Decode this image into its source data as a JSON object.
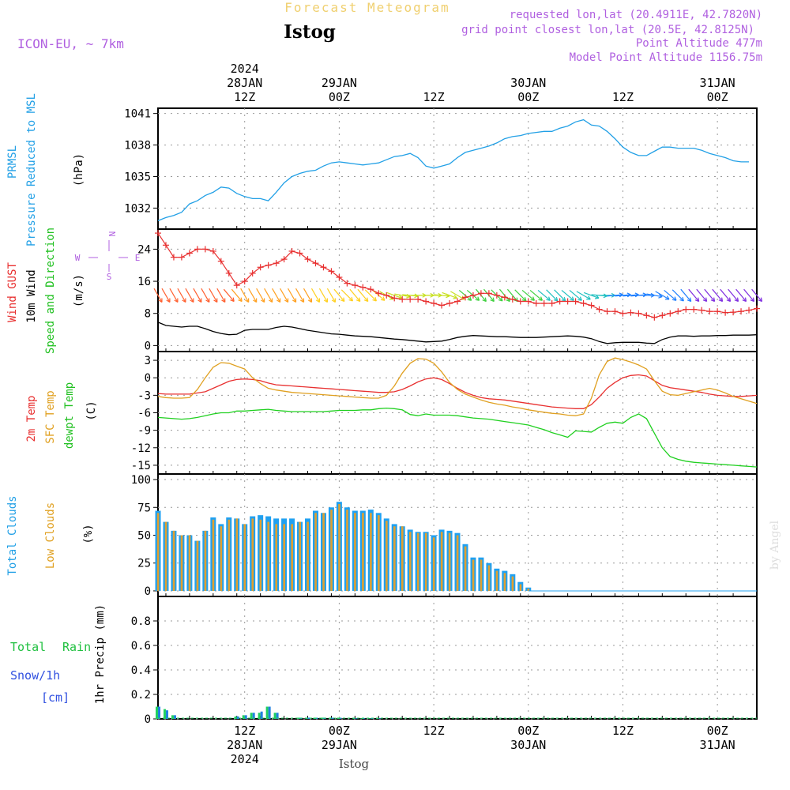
{
  "header": {
    "top_title": "Forecast Meteogram",
    "location": "Istog",
    "model": "ICON-EU, ~ 7km",
    "requested": "requested lon,lat (20.4911E, 42.7820N)",
    "gridpoint": "grid point closest lon,lat (20.5E, 42.8125N)",
    "point_alt": "Point Altitude 477m",
    "model_alt": "Model Point Altitude 1156.75m",
    "footer_location": "Istog",
    "watermark": "by Angel"
  },
  "time_axis": {
    "top_labels": [
      {
        "t": 12,
        "lines": [
          "2024",
          "28JAN",
          "12Z"
        ]
      },
      {
        "t": 24,
        "lines": [
          "29JAN",
          "00Z"
        ]
      },
      {
        "t": 36,
        "lines": [
          "12Z"
        ]
      },
      {
        "t": 48,
        "lines": [
          "30JAN",
          "00Z"
        ]
      },
      {
        "t": 60,
        "lines": [
          "12Z"
        ]
      },
      {
        "t": 72,
        "lines": [
          "31JAN",
          "00Z"
        ]
      }
    ],
    "bottom_labels": [
      {
        "t": 12,
        "lines": [
          "12Z",
          "28JAN",
          "2024"
        ]
      },
      {
        "t": 24,
        "lines": [
          "00Z",
          "29JAN"
        ]
      },
      {
        "t": 36,
        "lines": [
          "12Z"
        ]
      },
      {
        "t": 48,
        "lines": [
          "00Z",
          "30JAN"
        ]
      },
      {
        "t": 60,
        "lines": [
          "12Z"
        ]
      },
      {
        "t": 72,
        "lines": [
          "00Z",
          "31JAN"
        ]
      }
    ]
  },
  "panel_labels": {
    "pressure": {
      "a": "PRMSL",
      "b": "Pressure Reduced to MSL",
      "unit": "(hPa)"
    },
    "wind": {
      "a": "Wind GUST",
      "b": "10m Wind",
      "c": "Speed and Direction",
      "unit": "(m/s)",
      "compass_n": "N",
      "compass_s": "S",
      "compass_w": "W",
      "compass_e": "E"
    },
    "temp": {
      "a": "2m Temp",
      "b": "SFC Temp",
      "c": "dewpt Temp",
      "unit": "(C)"
    },
    "clouds": {
      "a": "Total Clouds",
      "b": "Low Clouds",
      "unit": "(%)"
    },
    "precip": {
      "a": "Total",
      "b": "Rain",
      "c": "Snow/1h",
      "d": "[cm]",
      "unit": "1hr Precip (mm)"
    }
  },
  "chart_data": [
    {
      "type": "line",
      "title": "PRMSL Pressure Reduced to MSL",
      "ylabel": "(hPa)",
      "ylim": [
        1030,
        1041.5
      ],
      "yticks": [
        1032,
        1035,
        1038,
        1041
      ],
      "color": "#22a0e6",
      "x": [
        1,
        2,
        3,
        4,
        5,
        6,
        7,
        8,
        9,
        10,
        11,
        12,
        13,
        14,
        15,
        16,
        17,
        18,
        19,
        20,
        21,
        22,
        23,
        24,
        25,
        26,
        27,
        28,
        29,
        30,
        31,
        32,
        33,
        34,
        35,
        36,
        37,
        38,
        39,
        40,
        41,
        42,
        43,
        44,
        45,
        46,
        47,
        48,
        49,
        50,
        51,
        52,
        53,
        54,
        55,
        56,
        57,
        58,
        59,
        60,
        61,
        62,
        63,
        64,
        65,
        66,
        67,
        68,
        69,
        70,
        71,
        72,
        73,
        74,
        75,
        76
      ],
      "values": [
        1030.8,
        1031.1,
        1031.3,
        1031.6,
        1032.4,
        1032.7,
        1033.2,
        1033.5,
        1034.0,
        1033.9,
        1033.4,
        1033.1,
        1032.9,
        1032.9,
        1032.7,
        1033.5,
        1034.4,
        1035.0,
        1035.3,
        1035.5,
        1035.6,
        1036.0,
        1036.3,
        1036.4,
        1036.3,
        1036.2,
        1036.1,
        1036.2,
        1036.3,
        1036.6,
        1036.9,
        1037.0,
        1037.2,
        1036.8,
        1036.0,
        1035.8,
        1036.0,
        1036.2,
        1036.8,
        1037.3,
        1037.5,
        1037.7,
        1037.9,
        1038.2,
        1038.6,
        1038.8,
        1038.9,
        1039.1,
        1039.2,
        1039.3,
        1039.3,
        1039.6,
        1039.8,
        1040.2,
        1040.4,
        1039.9,
        1039.8,
        1039.3,
        1038.6,
        1037.8,
        1037.3,
        1037.0,
        1037.0,
        1037.4,
        1037.8,
        1037.8,
        1037.7,
        1037.7,
        1037.7,
        1037.5,
        1037.2,
        1037.0,
        1036.8,
        1036.5,
        1036.4,
        1036.4
      ]
    },
    {
      "type": "line",
      "title": "Wind GUST / 10m Wind Speed and Direction",
      "ylabel": "(m/s)",
      "ylim": [
        -1.5,
        29
      ],
      "yticks": [
        0,
        8,
        16,
        24
      ],
      "series": [
        {
          "name": "Wind GUST",
          "color": "#e83030",
          "marker": "+",
          "values": [
            28,
            25,
            22,
            22,
            23,
            24,
            24,
            23.5,
            21,
            18,
            15,
            16,
            18,
            19.5,
            20,
            20.5,
            21.5,
            23.5,
            23,
            21.5,
            20.5,
            19.5,
            18.5,
            17,
            15.5,
            15,
            14.5,
            14,
            13,
            12.5,
            11.8,
            11.5,
            11.5,
            11.5,
            11,
            10.5,
            10,
            10.5,
            11,
            12,
            12.5,
            13,
            13,
            12.5,
            12,
            11.5,
            11,
            11,
            10.5,
            10.5,
            10.5,
            11,
            11,
            11,
            10.5,
            10,
            9,
            8.5,
            8.5,
            8,
            8.2,
            8,
            7.5,
            7,
            7.5,
            8,
            8.5,
            9,
            9,
            8.8,
            8.5,
            8.5,
            8.2,
            8.3,
            8.5,
            8.8,
            9.2
          ]
        },
        {
          "name": "10m Wind",
          "color": "#000000",
          "values": [
            5.8,
            5,
            4.8,
            4.6,
            4.8,
            4.8,
            4.2,
            3.5,
            3,
            2.7,
            2.8,
            3.8,
            4,
            4,
            4,
            4.5,
            4.8,
            4.6,
            4.2,
            3.8,
            3.5,
            3.2,
            2.9,
            2.8,
            2.6,
            2.4,
            2.3,
            2.2,
            2,
            1.8,
            1.6,
            1.5,
            1.3,
            1.1,
            0.9,
            1.0,
            1.1,
            1.5,
            2,
            2.3,
            2.5,
            2.4,
            2.3,
            2.2,
            2.2,
            2.1,
            2,
            2,
            2,
            2.1,
            2.2,
            2.3,
            2.4,
            2.3,
            2.1,
            1.7,
            1.0,
            0.5,
            0.7,
            0.8,
            0.8,
            0.8,
            0.6,
            0.5,
            1.5,
            2.1,
            2.4,
            2.4,
            2.3,
            2.4,
            2.4,
            2.5,
            2.5,
            2.6,
            2.6,
            2.6,
            2.7
          ]
        }
      ],
      "arrows": {
        "direction_deg": [
          150,
          150,
          150,
          150,
          150,
          150,
          150,
          150,
          150,
          140,
          140,
          150,
          150,
          150,
          150,
          150,
          150,
          150,
          150,
          150,
          150,
          150,
          150,
          140,
          135,
          140,
          140,
          135,
          130,
          120,
          110,
          100,
          95,
          90,
          90,
          90,
          95,
          110,
          120,
          130,
          130,
          140,
          140,
          135,
          140,
          140,
          135,
          130,
          130,
          130,
          135,
          135,
          130,
          130,
          120,
          110,
          95,
          90,
          85,
          85,
          85,
          85,
          90,
          100,
          120,
          130,
          135,
          140,
          140,
          140,
          140,
          140,
          140,
          140,
          140,
          140,
          140
        ],
        "color_stops": [
          "#ff6030",
          "#ffa020",
          "#ffd020",
          "#c8e020",
          "#40d040",
          "#20c0c0",
          "#2080ff",
          "#8030e0"
        ]
      }
    },
    {
      "type": "line",
      "title": "2m Temp / SFC Temp / dewpt Temp",
      "ylabel": "(C)",
      "ylim": [
        -16.5,
        4.5
      ],
      "yticks": [
        3,
        0,
        -3,
        -6,
        -9,
        -12,
        -15
      ],
      "series": [
        {
          "name": "2m Temp",
          "color": "#e83030",
          "values": [
            -2.7,
            -2.8,
            -2.8,
            -2.8,
            -2.8,
            -2.6,
            -2.4,
            -1.8,
            -1.2,
            -0.6,
            -0.3,
            -0.2,
            -0.3,
            -0.5,
            -0.9,
            -1.2,
            -1.3,
            -1.4,
            -1.5,
            -1.6,
            -1.7,
            -1.8,
            -1.9,
            -2,
            -2.1,
            -2.2,
            -2.3,
            -2.4,
            -2.5,
            -2.5,
            -2.4,
            -2,
            -1.4,
            -0.7,
            -0.2,
            0,
            -0.3,
            -1,
            -1.8,
            -2.5,
            -3,
            -3.4,
            -3.6,
            -3.7,
            -3.8,
            -4,
            -4.2,
            -4.4,
            -4.6,
            -4.8,
            -5,
            -5.1,
            -5.2,
            -5.3,
            -5.3,
            -4.6,
            -3.3,
            -1.8,
            -0.8,
            0,
            0.4,
            0.5,
            0.3,
            -0.5,
            -1.3,
            -1.7,
            -1.9,
            -2.1,
            -2.3,
            -2.5,
            -2.8,
            -3,
            -3.1,
            -3.2,
            -3.2,
            -3.1,
            -3
          ]
        },
        {
          "name": "SFC Temp",
          "color": "#e0a020",
          "values": [
            -3.2,
            -3.4,
            -3.5,
            -3.5,
            -3.4,
            -2,
            0,
            1.8,
            2.6,
            2.5,
            2,
            1.5,
            0,
            -1,
            -1.8,
            -2.1,
            -2.3,
            -2.5,
            -2.6,
            -2.7,
            -2.8,
            -2.9,
            -3,
            -3.1,
            -3.2,
            -3.3,
            -3.4,
            -3.5,
            -3.5,
            -3,
            -1.4,
            0.8,
            2.5,
            3.3,
            3.2,
            2.5,
            1,
            -0.8,
            -2,
            -2.8,
            -3.3,
            -3.8,
            -4.2,
            -4.5,
            -4.7,
            -5,
            -5.2,
            -5.5,
            -5.7,
            -5.9,
            -6.1,
            -6.2,
            -6.4,
            -6.5,
            -6.2,
            -3.5,
            0.5,
            2.8,
            3.4,
            3.1,
            2.7,
            2.2,
            1.5,
            -0.5,
            -2.3,
            -2.9,
            -3,
            -2.7,
            -2.4,
            -2.1,
            -1.8,
            -2.1,
            -2.6,
            -3.2,
            -3.6,
            -4,
            -4.4
          ]
        },
        {
          "name": "dewpt Temp",
          "color": "#20d020",
          "values": [
            -6.8,
            -6.9,
            -7,
            -7.1,
            -7,
            -6.8,
            -6.5,
            -6.2,
            -6,
            -6,
            -5.7,
            -5.7,
            -5.6,
            -5.5,
            -5.4,
            -5.6,
            -5.7,
            -5.8,
            -5.8,
            -5.8,
            -5.8,
            -5.8,
            -5.7,
            -5.6,
            -5.6,
            -5.6,
            -5.5,
            -5.5,
            -5.3,
            -5.2,
            -5.3,
            -5.5,
            -6.3,
            -6.5,
            -6.2,
            -6.4,
            -6.4,
            -6.4,
            -6.5,
            -6.7,
            -6.9,
            -7,
            -7.1,
            -7.3,
            -7.5,
            -7.7,
            -7.9,
            -8.1,
            -8.5,
            -8.9,
            -9.4,
            -9.8,
            -10.2,
            -9.1,
            -9.2,
            -9.3,
            -8.5,
            -7.8,
            -7.6,
            -7.8,
            -6.8,
            -6.2,
            -7,
            -9.5,
            -12,
            -13.5,
            -14,
            -14.3,
            -14.5,
            -14.6,
            -14.7,
            -14.8,
            -14.9,
            -15,
            -15.1,
            -15.2,
            -15.3
          ]
        }
      ]
    },
    {
      "type": "bar",
      "title": "Total Clouds / Low Clouds",
      "ylabel": "(%)",
      "ylim": [
        -5,
        105
      ],
      "yticks": [
        0,
        25,
        50,
        75,
        100
      ],
      "series": [
        {
          "name": "Total Clouds",
          "color": "#20a0f0",
          "values": [
            72,
            62,
            54,
            50,
            50,
            45,
            54,
            66,
            60,
            66,
            65,
            60,
            67,
            68,
            67,
            65,
            65,
            65,
            62,
            65,
            72,
            70,
            75,
            80,
            75,
            72,
            72,
            73,
            70,
            65,
            60,
            58,
            55,
            53,
            53,
            50,
            55,
            54,
            52,
            42,
            30,
            30,
            25,
            20,
            18,
            15,
            8,
            3,
            0,
            0,
            0,
            0,
            0,
            0,
            0,
            0,
            0,
            0,
            0,
            0,
            0,
            0,
            0,
            0,
            0,
            0,
            0,
            0,
            0,
            0,
            0,
            0,
            0,
            0,
            0,
            0
          ]
        },
        {
          "name": "Low Clouds",
          "color": "#e0a030",
          "values": [
            70,
            62,
            54,
            50,
            50,
            45,
            54,
            64,
            58,
            64,
            65,
            60,
            65,
            64,
            62,
            60,
            60,
            60,
            62,
            62,
            70,
            70,
            73,
            78,
            73,
            70,
            70,
            70,
            68,
            63,
            58,
            58,
            53,
            52,
            52,
            48,
            53,
            52,
            50,
            40,
            28,
            28,
            23,
            18,
            16,
            13,
            6,
            2,
            0,
            0,
            0,
            0,
            0,
            0,
            0,
            0,
            0,
            0,
            0,
            0,
            0,
            0,
            0,
            0,
            0,
            0,
            0,
            0,
            0,
            0,
            0,
            0,
            0,
            0,
            0,
            0
          ]
        }
      ]
    },
    {
      "type": "bar",
      "title": "1hr Precip (mm)",
      "ylabel": "1hr Precip (mm)",
      "ylim": [
        0,
        1.0
      ],
      "yticks": [
        0,
        0.2,
        0.4,
        0.6,
        0.8
      ],
      "series": [
        {
          "name": "Total",
          "color": "#20d060",
          "values": [
            0.1,
            0.08,
            0.03,
            0,
            0,
            0,
            0,
            0,
            0,
            0,
            0.02,
            0.03,
            0.05,
            0.05,
            0.1,
            0.05,
            0,
            0,
            0.01,
            0.01,
            0.01,
            0.01,
            0.01,
            0.01,
            0,
            0.005,
            0.005,
            0.005,
            0.005,
            0,
            0,
            0,
            0,
            0,
            0,
            0,
            0,
            0,
            0,
            0,
            0,
            0,
            0,
            0,
            0,
            0,
            0,
            0,
            0,
            0,
            0,
            0,
            0,
            0,
            0,
            0,
            0,
            0,
            0,
            0,
            0,
            0,
            0,
            0,
            0,
            0,
            0,
            0,
            0,
            0,
            0,
            0,
            0,
            0,
            0,
            0
          ]
        },
        {
          "name": "Snow/1h",
          "color": "#2080e0",
          "values": [
            0.1,
            0.07,
            0.03,
            0,
            0,
            0,
            0,
            0,
            0,
            0,
            0.02,
            0.03,
            0.05,
            0.06,
            0.1,
            0.05,
            0,
            0,
            0.01,
            0.01,
            0.01,
            0.01,
            0.01,
            0.01,
            0,
            0.005,
            0.005,
            0.005,
            0.005,
            0,
            0,
            0,
            0,
            0,
            0,
            0,
            0,
            0,
            0,
            0,
            0,
            0,
            0,
            0,
            0,
            0,
            0,
            0,
            0,
            0,
            0,
            0,
            0,
            0,
            0,
            0,
            0,
            0,
            0,
            0,
            0,
            0,
            0,
            0,
            0,
            0,
            0,
            0,
            0,
            0,
            0,
            0,
            0,
            0,
            0,
            0
          ]
        }
      ]
    }
  ]
}
